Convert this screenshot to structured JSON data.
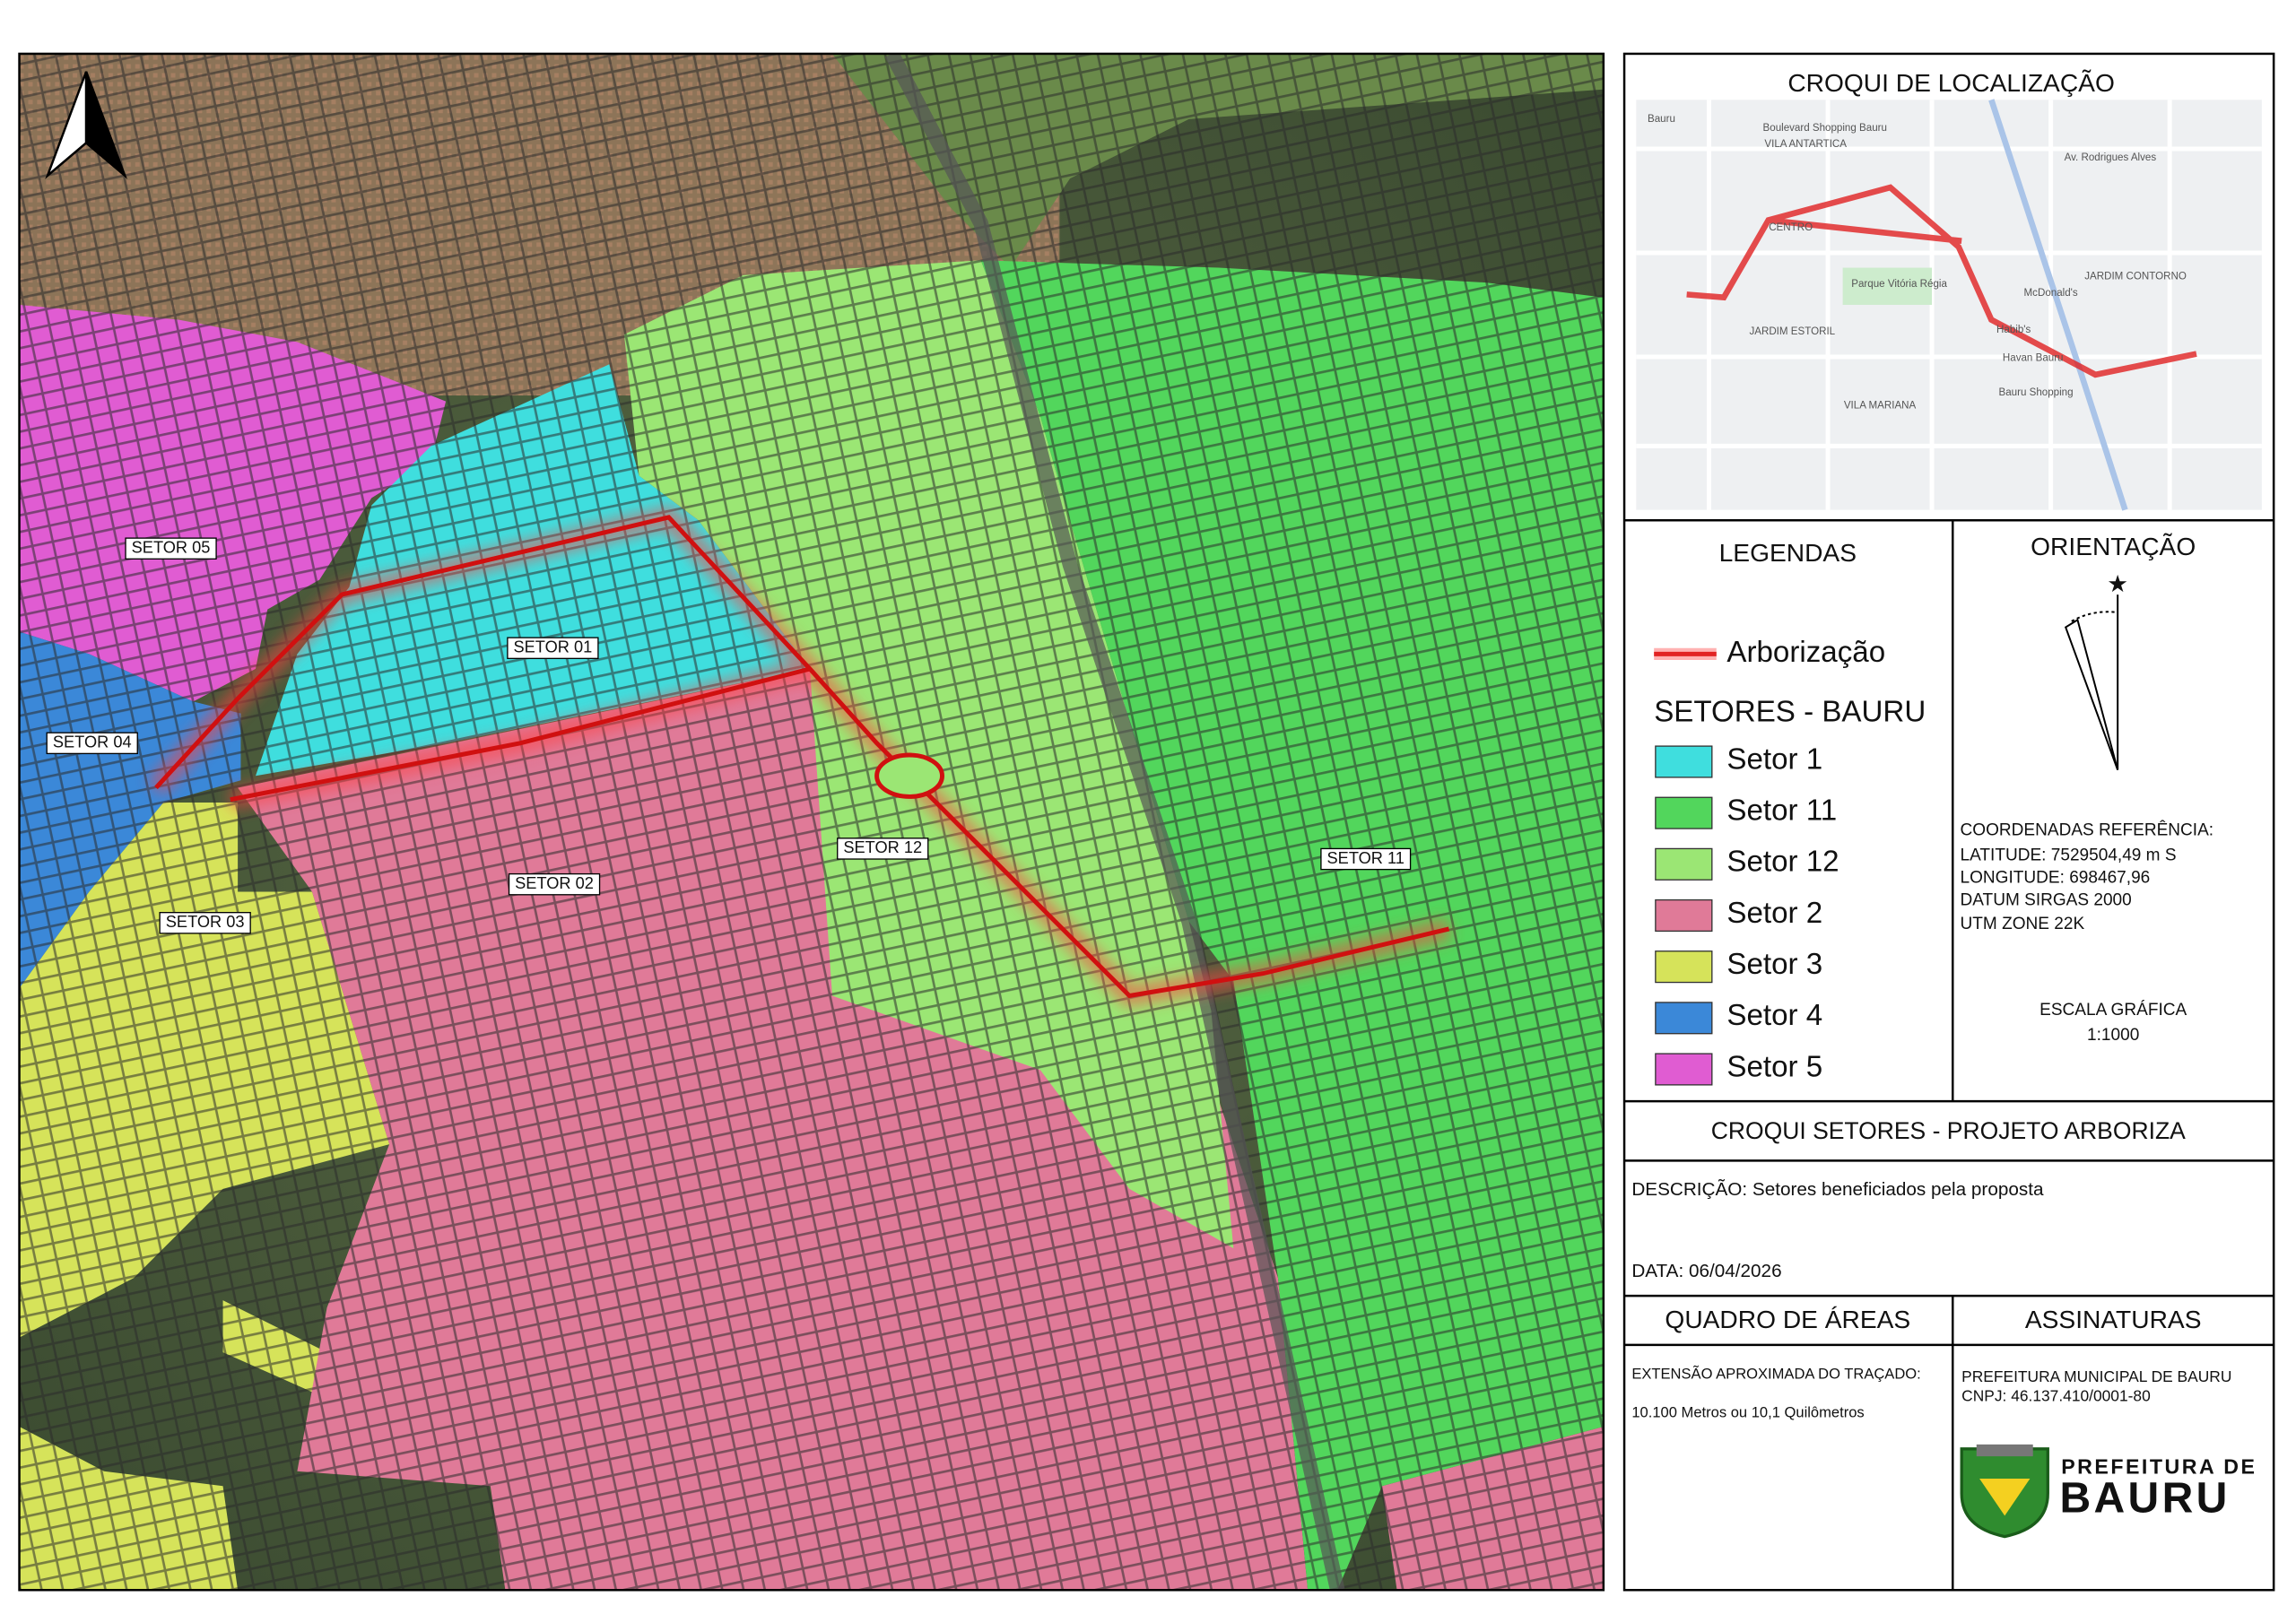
{
  "map": {
    "labels": [
      "SETOR 05",
      "SETOR 01",
      "SETOR 04",
      "SETOR 12",
      "SETOR 11",
      "SETOR 02",
      "SETOR 03"
    ]
  },
  "inset": {
    "title": "CROQUI DE LOCALIZAÇÃO",
    "places": [
      "Bauru",
      "Boulevard Shopping Bauru",
      "VILA ANTARTICA",
      "Av. Rodrigues Alves",
      "CENTRO",
      "Parque Vitória Régia",
      "McDonald's",
      "JARDIM CONTORNO",
      "JARDIM ESTORIL",
      "Habib's",
      "Havan Bauru",
      "Bauru Shopping",
      "VILA MARIANA"
    ]
  },
  "legend": {
    "title": "LEGENDAS",
    "route": "Arborização",
    "sectors_title": "SETORES - BAURU",
    "sectors": [
      {
        "name": "Setor 1",
        "color": "#3fdede"
      },
      {
        "name": "Setor 11",
        "color": "#52d65c"
      },
      {
        "name": "Setor 12",
        "color": "#9be674"
      },
      {
        "name": "Setor 2",
        "color": "#e07a98"
      },
      {
        "name": "Setor 3",
        "color": "#d6e35a"
      },
      {
        "name": "Setor 4",
        "color": "#3b88d8"
      },
      {
        "name": "Setor 5",
        "color": "#e05cd2"
      }
    ]
  },
  "orientation": {
    "title": "ORIENTAÇÃO"
  },
  "coordinates": {
    "title": "COORDENADAS REFERÊNCIA:",
    "lines": [
      "LATITUDE: 7529504,49 m S",
      "LONGITUDE: 698467,96",
      "DATUM SIRGAS 2000",
      "UTM ZONE 22K"
    ]
  },
  "scale": {
    "title": "ESCALA GRÁFICA",
    "value": "1:1000"
  },
  "title_block": {
    "title": "CROQUI SETORES - PROJETO ARBORIZA",
    "description": "DESCRIÇÃO: Setores beneficiados pela proposta",
    "date": "DATA: 06/04/2026"
  },
  "areas": {
    "title": "QUADRO DE ÁREAS",
    "label": "EXTENSÃO APROXIMADA DO TRAÇADO:",
    "value": "10.100 Metros ou 10,1 Quilômetros"
  },
  "signatures": {
    "title": "ASSINATURAS",
    "name": "PREFEITURA MUNICIPAL DE BAURU",
    "cnpj": "CNPJ: 46.137.410/0001-80",
    "logo_top": "PREFEITURA DE",
    "logo_bottom": "BAURU"
  }
}
